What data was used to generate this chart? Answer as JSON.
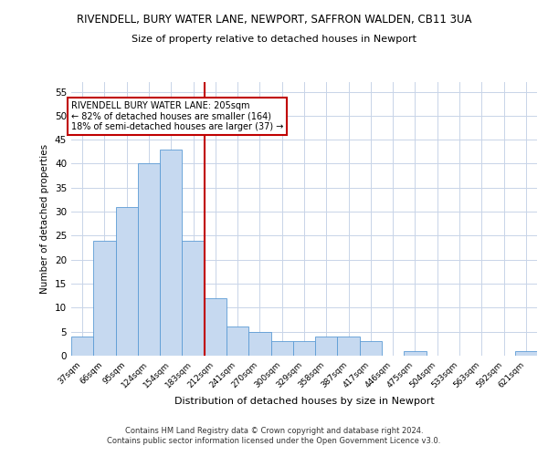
{
  "title_line1": "RIVENDELL, BURY WATER LANE, NEWPORT, SAFFRON WALDEN, CB11 3UA",
  "title_line2": "Size of property relative to detached houses in Newport",
  "xlabel": "Distribution of detached houses by size in Newport",
  "ylabel": "Number of detached properties",
  "categories": [
    "37sqm",
    "66sqm",
    "95sqm",
    "124sqm",
    "154sqm",
    "183sqm",
    "212sqm",
    "241sqm",
    "270sqm",
    "300sqm",
    "329sqm",
    "358sqm",
    "387sqm",
    "417sqm",
    "446sqm",
    "475sqm",
    "504sqm",
    "533sqm",
    "563sqm",
    "592sqm",
    "621sqm"
  ],
  "values": [
    4,
    24,
    31,
    40,
    43,
    24,
    12,
    6,
    5,
    3,
    3,
    4,
    4,
    3,
    0,
    1,
    0,
    0,
    0,
    0,
    1
  ],
  "bar_color": "#c6d9f0",
  "bar_edge_color": "#5b9bd5",
  "vline_x_index": 5.5,
  "vline_color": "#c00000",
  "annotation_text": "RIVENDELL BURY WATER LANE: 205sqm\n← 82% of detached houses are smaller (164)\n18% of semi-detached houses are larger (37) →",
  "annotation_box_color": "#ffffff",
  "annotation_box_edge_color": "#c00000",
  "ylim": [
    0,
    57
  ],
  "yticks": [
    0,
    5,
    10,
    15,
    20,
    25,
    30,
    35,
    40,
    45,
    50,
    55
  ],
  "footer_line1": "Contains HM Land Registry data © Crown copyright and database right 2024.",
  "footer_line2": "Contains public sector information licensed under the Open Government Licence v3.0.",
  "background_color": "#ffffff",
  "grid_color": "#c8d4e8"
}
